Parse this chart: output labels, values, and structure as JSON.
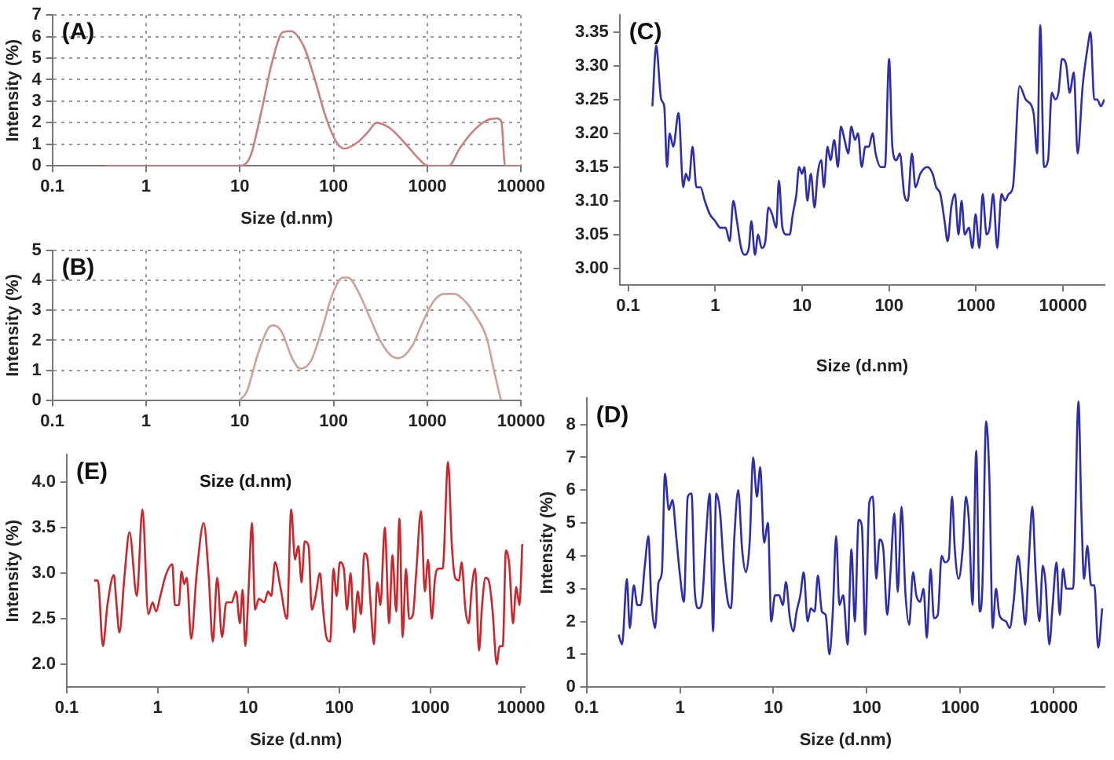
{
  "chart_data": [
    {
      "type": "line",
      "annotations": [
        "(A)"
      ],
      "xlabel": "Size (d.nm)",
      "ylabel": "Intensity (%)",
      "log": "x",
      "grid": true,
      "xlim": [
        0.1,
        10000
      ],
      "xticks": [
        0.1,
        1,
        10,
        100,
        1000,
        10000
      ],
      "ylim": [
        0,
        7
      ],
      "yticks": [
        0,
        1,
        2,
        3,
        4,
        5,
        6,
        7
      ],
      "color": "#c98080",
      "x": [
        0.37,
        10,
        13,
        16.9,
        22,
        28.6,
        34.9,
        48.5,
        63.1,
        82,
        107,
        130,
        181,
        235,
        286,
        398,
        590,
        820,
        1000,
        1690,
        2200,
        3060,
        4250,
        5530,
        6150,
        6740,
        10000
      ],
      "values": [
        0,
        0,
        0.47,
        2.5,
        4.8,
        6.2,
        6.25,
        5.5,
        4,
        2.3,
        1.1,
        0.8,
        1.1,
        1.6,
        2,
        1.75,
        1,
        0.3,
        0,
        0,
        0.8,
        1.6,
        2.1,
        2.2,
        2.05,
        0,
        0
      ]
    },
    {
      "type": "line",
      "annotations": [
        "(B)"
      ],
      "ylabel": "Intensity (%)",
      "log": "x",
      "grid": true,
      "xlim": [
        0.1,
        10000
      ],
      "xticks": [
        0.1,
        1,
        10,
        100,
        1000,
        10000
      ],
      "ylim": [
        0,
        5
      ],
      "yticks": [
        0,
        1,
        2,
        3,
        4,
        5
      ],
      "color": "#d0a09a",
      "x": [
        10,
        11.9,
        15.4,
        20,
        22.8,
        27.7,
        36.1,
        43.9,
        57,
        74,
        96.1,
        125,
        142,
        185,
        240,
        312,
        405,
        493,
        684,
        889,
        1160,
        1500,
        1950,
        2530,
        3290,
        4270,
        5200,
        6080
      ],
      "values": [
        0,
        0.3,
        1.5,
        2.4,
        2.5,
        2.3,
        1.4,
        1.05,
        1.3,
        2.3,
        3.5,
        4.1,
        4.1,
        3.6,
        2.8,
        2,
        1.5,
        1.4,
        1.8,
        2.6,
        3.3,
        3.55,
        3.55,
        3.3,
        2.8,
        2.1,
        0.9,
        0
      ]
    },
    {
      "type": "line",
      "annotations": [
        "(C)"
      ],
      "xlabel": "Size (d.nm)",
      "log": "x",
      "xlim": [
        0.08,
        30000
      ],
      "xticks": [
        0.1,
        1,
        10,
        100,
        1000,
        10000
      ],
      "ylim": [
        2.975,
        3.375
      ],
      "yticks": [
        {
          "value": 3,
          "label": "3.00"
        },
        {
          "value": 3.05,
          "label": "3.05"
        },
        {
          "value": 3.1,
          "label": "3.10"
        },
        {
          "value": 3.15,
          "label": "3.15"
        },
        {
          "value": 3.2,
          "label": "3.20"
        },
        {
          "value": 3.25,
          "label": "3.25"
        },
        {
          "value": 3.3,
          "label": "3.30"
        },
        {
          "value": 3.35,
          "label": "3.35"
        }
      ],
      "color": "#2e2eaa",
      "x": [
        0.19,
        0.21,
        0.24,
        0.26,
        0.28,
        0.3,
        0.33,
        0.38,
        0.43,
        0.46,
        0.5,
        0.55,
        0.61,
        0.68,
        0.76,
        0.87,
        1,
        1.15,
        1.32,
        1.47,
        1.62,
        1.78,
        1.99,
        2.18,
        2.44,
        2.61,
        2.87,
        3.12,
        3.43,
        3.78,
        4.1,
        4.52,
        5.04,
        5.4,
        5.94,
        6.63,
        7.19,
        7.81,
        8.6,
        9.21,
        10,
        10.6,
        11.5,
        12.6,
        13.9,
        15.1,
        16.6,
        17.8,
        19.6,
        21.2,
        23.4,
        25.8,
        27.9,
        30.8,
        33.9,
        36.8,
        40.5,
        43.9,
        48.4,
        53.2,
        58.6,
        64.5,
        70,
        80.3,
        89.6,
        100,
        109,
        121,
        133,
        149,
        164,
        183,
        201,
        228,
        276,
        316,
        348,
        388,
        434,
        471,
        518,
        570,
        628,
        681,
        740,
        826,
        908,
        986,
        1090,
        1190,
        1320,
        1430,
        1570,
        1750,
        1960,
        2150,
        2370,
        2650,
        3160,
        3720,
        4580,
        5040,
        5470,
        6030,
        6720,
        7400,
        8140,
        8840,
        9730,
        10900,
        11900,
        13300,
        14700,
        16800,
        19300,
        20700,
        22800,
        24700,
        27200,
        29900
      ],
      "values": [
        3.24,
        3.33,
        3.25,
        3.24,
        3.15,
        3.2,
        3.18,
        3.23,
        3.12,
        3.14,
        3.13,
        3.18,
        3.12,
        3.12,
        3.1,
        3.08,
        3.07,
        3.06,
        3.06,
        3.04,
        3.1,
        3.07,
        3.03,
        3.02,
        3.03,
        3.07,
        3.02,
        3.05,
        3.03,
        3.04,
        3.09,
        3.08,
        3.06,
        3.13,
        3.06,
        3.05,
        3.05,
        3.08,
        3.11,
        3.15,
        3.14,
        3.15,
        3.1,
        3.14,
        3.09,
        3.14,
        3.16,
        3.12,
        3.18,
        3.16,
        3.19,
        3.15,
        3.21,
        3.19,
        3.17,
        3.21,
        3.19,
        3.2,
        3.15,
        3.18,
        3.18,
        3.2,
        3.17,
        3.15,
        3.15,
        3.31,
        3.18,
        3.16,
        3.17,
        3.11,
        3.1,
        3.17,
        3.12,
        3.14,
        3.15,
        3.14,
        3.12,
        3.11,
        3.07,
        3.04,
        3.09,
        3.11,
        3.05,
        3.1,
        3.05,
        3.06,
        3.03,
        3.08,
        3.03,
        3.11,
        3.05,
        3.06,
        3.11,
        3.03,
        3.11,
        3.1,
        3.11,
        3.12,
        3.27,
        3.25,
        3.23,
        3.17,
        3.36,
        3.15,
        3.16,
        3.26,
        3.25,
        3.26,
        3.31,
        3.3,
        3.26,
        3.29,
        3.17,
        3.27,
        3.33,
        3.35,
        3.25,
        3.25,
        3.24,
        3.25
      ]
    },
    {
      "type": "line",
      "annotations": [
        "(D)"
      ],
      "xlabel": "Size (d.nm)",
      "ylabel": "Intensity (%)",
      "log": "x",
      "xlim": [
        0.1,
        35000
      ],
      "xticks": [
        0.1,
        1,
        10,
        100,
        1000,
        10000
      ],
      "ylim": [
        0,
        8.8
      ],
      "yticks": [
        0,
        1,
        2,
        3,
        4,
        5,
        6,
        7,
        8
      ],
      "color": "#2e2eaa",
      "x": [
        0.22,
        0.24,
        0.27,
        0.29,
        0.32,
        0.35,
        0.38,
        0.42,
        0.46,
        0.49,
        0.54,
        0.59,
        0.64,
        0.69,
        0.76,
        0.83,
        0.91,
        1,
        1.1,
        1.21,
        1.33,
        1.44,
        1.58,
        1.72,
        1.91,
        2.08,
        2.26,
        2.44,
        2.69,
        2.92,
        3.25,
        3.52,
        3.82,
        4.2,
        4.62,
        5.08,
        5.59,
        6.06,
        6.66,
        7.22,
        7.94,
        8.74,
        9.47,
        10.4,
        11.5,
        12.6,
        13.6,
        15,
        16.3,
        17.7,
        19.4,
        21.1,
        23.2,
        25.1,
        27.6,
        29.9,
        33,
        36.2,
        39.8,
        43.2,
        46.9,
        50.8,
        55.8,
        62.2,
        68.4,
        74.3,
        81.6,
        88.5,
        96,
        106,
        116,
        126,
        137,
        150,
        165,
        179,
        197,
        214,
        235,
        258,
        284,
        312,
        338,
        372,
        404,
        438,
        481,
        522,
        574,
        631,
        684,
        752,
        816,
        873,
        960,
        1060,
        1150,
        1240,
        1350,
        1480,
        1610,
        1720,
        1890,
        2050,
        2220,
        2410,
        2620,
        3080,
        3380,
        3720,
        4150,
        4560,
        4950,
        5440,
        5900,
        6400,
        7030,
        7630,
        8160,
        8970,
        9730,
        10700,
        11600,
        12600,
        13600,
        16100,
        18400,
        19700,
        21100,
        22900,
        25100,
        27200,
        29900,
        33000
      ],
      "values": [
        1.6,
        1.3,
        3.3,
        1.8,
        3.1,
        2.5,
        2.5,
        3.7,
        4.6,
        2.8,
        1.8,
        3.2,
        3.5,
        6.5,
        5.4,
        5.7,
        4.6,
        3.4,
        2.6,
        5.8,
        5.9,
        2.9,
        2.4,
        2.6,
        4.7,
        5.9,
        1.7,
        5.9,
        5.3,
        3.8,
        2.6,
        2.4,
        4.6,
        6,
        4.2,
        3.5,
        4.5,
        7,
        5.8,
        6.7,
        4.4,
        5,
        2,
        2.8,
        2.8,
        2.5,
        3.2,
        2.1,
        1.7,
        2.3,
        2.8,
        3.5,
        2,
        2.4,
        2.3,
        3.4,
        2.3,
        2.2,
        1,
        2.3,
        4.6,
        2.5,
        2.8,
        1.3,
        4.2,
        2,
        5.1,
        4.9,
        1.6,
        5.6,
        5.8,
        3.3,
        4.5,
        4.2,
        2.2,
        3.5,
        5.3,
        2.9,
        5.5,
        2.9,
        1.9,
        3.5,
        2.8,
        2.6,
        3,
        1.5,
        3.6,
        2.1,
        2.2,
        4,
        3.8,
        3.9,
        5.8,
        4.2,
        3.3,
        4.2,
        5.8,
        5,
        2.5,
        7.2,
        2.3,
        3,
        8.1,
        6.3,
        1.8,
        3,
        2.2,
        2,
        1.8,
        2.6,
        4,
        3,
        1.9,
        4,
        5.5,
        3.5,
        2,
        3.7,
        3.2,
        1.3,
        2.5,
        3.8,
        2.2,
        3.6,
        3,
        3,
        8.7,
        5.5,
        3.3,
        4.3,
        3.1,
        3.1,
        1.2,
        2.4
      ]
    },
    {
      "type": "line",
      "annotations": [
        "(E)",
        "Size (d.nm)"
      ],
      "xlabel": "Size (d.nm)",
      "ylabel": "Intensity (%)",
      "log": "x",
      "xlim": [
        0.1,
        11000
      ],
      "xticks": [
        0.1,
        1,
        10,
        100,
        1000,
        10000
      ],
      "ylim": [
        1.75,
        4.3
      ],
      "yticks": [
        {
          "value": 2,
          "label": "2.0"
        },
        {
          "value": 2.5,
          "label": "2.5"
        },
        {
          "value": 3,
          "label": "3.0"
        },
        {
          "value": 3.5,
          "label": "3.5"
        },
        {
          "value": 4,
          "label": "4.0"
        }
      ],
      "color": "#c8282d",
      "x": [
        0.2,
        0.22,
        0.25,
        0.28,
        0.33,
        0.35,
        0.38,
        0.43,
        0.49,
        0.59,
        0.68,
        0.79,
        0.88,
        0.96,
        1.07,
        1.23,
        1.45,
        1.55,
        1.71,
        1.83,
        1.96,
        2.09,
        2.34,
        2.69,
        3.21,
        3.63,
        4.05,
        4.52,
        5.11,
        5.7,
        6.53,
        7.29,
        8.04,
        8.61,
        9.21,
        10,
        10.9,
        11.8,
        13,
        14.9,
        16.4,
        17.8,
        19.6,
        22.4,
        26.5,
        29.5,
        32.5,
        35.3,
        38.3,
        41.6,
        45.8,
        49.7,
        54.7,
        61.1,
        66.2,
        71.9,
        79.3,
        86.1,
        93.3,
        101,
        112,
        121,
        133,
        145,
        159,
        173,
        188,
        204,
        221,
        240,
        261,
        283,
        316,
        353,
        383,
        422,
        458,
        497,
        540,
        586,
        646,
        700,
        792,
        871,
        946,
        1040,
        1130,
        1230,
        1370,
        1570,
        1730,
        1880,
        2070,
        2210,
        2440,
        2650,
        2870,
        3120,
        3440,
        3720,
        4050,
        4400,
        4840,
        5400,
        5780,
        6280,
        6810,
        7400,
        8150,
        8830,
        9590,
        10300
      ],
      "values": [
        2.92,
        2.92,
        2.2,
        2.65,
        2.98,
        2.7,
        2.35,
        2.95,
        3.45,
        2.75,
        3.7,
        2.55,
        2.68,
        2.58,
        2.75,
        2.98,
        3.1,
        2.65,
        2.65,
        3.02,
        2.88,
        2.95,
        2.28,
        3,
        3.55,
        3,
        2.25,
        2.95,
        2.3,
        2.68,
        2.68,
        2.8,
        2.45,
        2.82,
        2.2,
        2.8,
        3.55,
        2.6,
        2.72,
        2.68,
        2.8,
        2.75,
        3.12,
        2.85,
        2.5,
        3.7,
        3.15,
        3.3,
        2.9,
        3.35,
        3.3,
        2.6,
        2.75,
        3,
        2.6,
        2.3,
        2.25,
        3.05,
        2.75,
        3.12,
        3.05,
        2.6,
        3,
        2.35,
        2.8,
        2.55,
        3.22,
        3.15,
        2.65,
        2.22,
        2.9,
        2.65,
        3.5,
        2.45,
        3.2,
        2.58,
        3.6,
        2.3,
        3.05,
        2.5,
        2.55,
        3,
        3.68,
        2.8,
        3.15,
        2.5,
        2.95,
        3.05,
        3.05,
        4.22,
        3.3,
        2.95,
        2.92,
        3.12,
        2.6,
        2.45,
        2.85,
        3.05,
        2.15,
        2.65,
        2.95,
        2.92,
        2.6,
        2,
        2.2,
        2.2,
        3.25,
        3.1,
        2.45,
        2.85,
        2.65,
        3.32
      ]
    }
  ]
}
